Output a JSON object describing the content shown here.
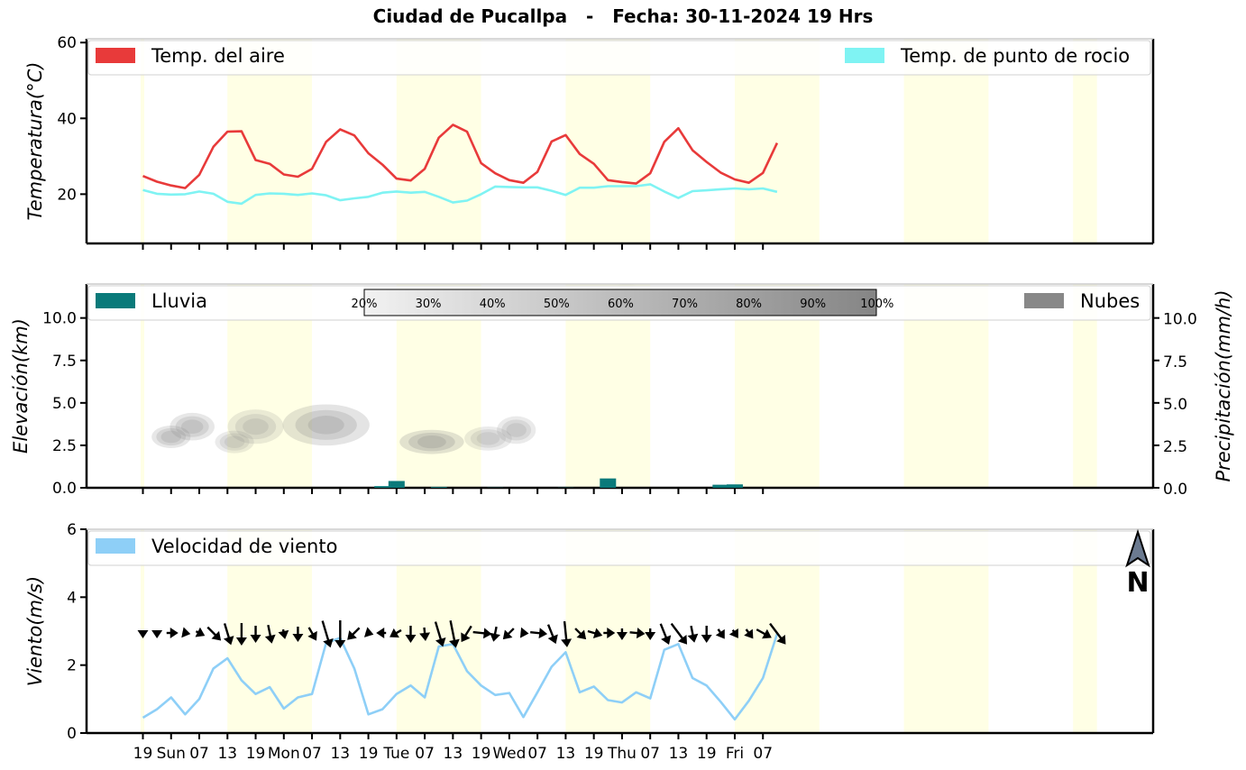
{
  "title": "Ciudad de Pucallpa   -   Fecha: 30-11-2024 19 Hrs",
  "chart_data": [
    {
      "type": "line",
      "panel": "temperature",
      "ylabel": "Temperatura(°C)",
      "ylim": [
        7,
        61
      ],
      "yticks": [
        "20",
        "40",
        "60"
      ],
      "series": [
        {
          "name": "Temp. del aire",
          "color": "#e83a3a",
          "values": [
            24.8,
            23.3,
            22.3,
            21.6,
            25.1,
            32.5,
            36.5,
            36.6,
            29.0,
            28.0,
            25.2,
            24.6,
            26.7,
            33.8,
            37.1,
            35.5,
            30.8,
            27.8,
            24.1,
            23.6,
            26.7,
            34.9,
            38.3,
            36.5,
            28.2,
            25.5,
            23.7,
            23.0,
            25.9,
            33.9,
            35.6,
            30.6,
            28.0,
            23.7,
            23.2,
            22.8,
            25.5,
            33.8,
            37.4,
            31.6,
            28.5,
            25.7,
            23.9,
            23.0,
            25.6,
            33.5
          ]
        },
        {
          "name": "Temp. de punto de rocio",
          "color": "#7ff3f3",
          "values": [
            21.1,
            20.1,
            19.9,
            20.0,
            20.7,
            20.1,
            18.0,
            17.5,
            19.8,
            20.2,
            20.1,
            19.8,
            20.2,
            19.7,
            18.4,
            18.9,
            19.3,
            20.4,
            20.7,
            20.4,
            20.6,
            19.3,
            17.8,
            18.3,
            20.0,
            22.0,
            21.9,
            21.8,
            21.8,
            20.9,
            19.8,
            21.7,
            21.7,
            22.1,
            22.1,
            22.1,
            22.6,
            20.7,
            19.0,
            20.8,
            21.0,
            21.3,
            21.5,
            21.3,
            21.5,
            20.6
          ]
        }
      ]
    },
    {
      "type": "bar",
      "panel": "clouds-rain",
      "ylabel": "Elevación(km)",
      "ylabel_right": "Precipitación(mm/h)",
      "ylim": [
        0,
        12
      ],
      "yticks": [
        "0.0",
        "2.5",
        "5.0",
        "7.5",
        "10.0"
      ],
      "series": [
        {
          "name": "Lluvia",
          "color": "#0a7a7a",
          "values": [
            0,
            0,
            0,
            0,
            0,
            0,
            0,
            0,
            0,
            0,
            0,
            0,
            0,
            0,
            0,
            0,
            0,
            0.1,
            0.4,
            0,
            0,
            0.05,
            0,
            0,
            0,
            0.02,
            0,
            0,
            0,
            0,
            0.02,
            0,
            0,
            0.55,
            0,
            0,
            0,
            0,
            0,
            0,
            0,
            0.18,
            0.2,
            0,
            0,
            0
          ]
        }
      ],
      "clouds_legend": "Nubes",
      "cloud_scale": [
        "20%",
        "30%",
        "40%",
        "50%",
        "60%",
        "70%",
        "80%",
        "90%",
        "100%"
      ]
    },
    {
      "type": "line",
      "panel": "wind",
      "ylabel": "Viento(m/s)",
      "ylim": [
        0,
        6
      ],
      "yticks": [
        "0",
        "2",
        "4",
        "6"
      ],
      "series": [
        {
          "name": "Velocidad de viento",
          "color": "#8ecff7",
          "values": [
            0.45,
            0.7,
            1.05,
            0.55,
            1.0,
            1.9,
            2.2,
            1.55,
            1.15,
            1.35,
            0.72,
            1.05,
            1.15,
            2.65,
            2.8,
            1.9,
            0.55,
            0.7,
            1.15,
            1.4,
            1.05,
            2.55,
            2.62,
            1.82,
            1.4,
            1.12,
            1.18,
            0.47,
            1.2,
            1.95,
            2.38,
            1.2,
            1.37,
            0.97,
            0.9,
            1.2,
            1.02,
            2.45,
            2.62,
            1.62,
            1.4,
            0.92,
            0.4,
            0.95,
            1.62,
            2.92
          ]
        }
      ],
      "north_label": "N"
    }
  ],
  "x_axis": {
    "tick_labels": [
      "19",
      "Sun",
      "07",
      "13",
      "19",
      "Mon",
      "07",
      "13",
      "19",
      "Tue",
      "07",
      "13",
      "19",
      "Wed",
      "07",
      "13",
      "19",
      "Thu",
      "07",
      "13",
      "19",
      "Fri",
      "07"
    ]
  },
  "colors": {
    "day_band": "#ffffe5",
    "cloud": "#888888"
  }
}
